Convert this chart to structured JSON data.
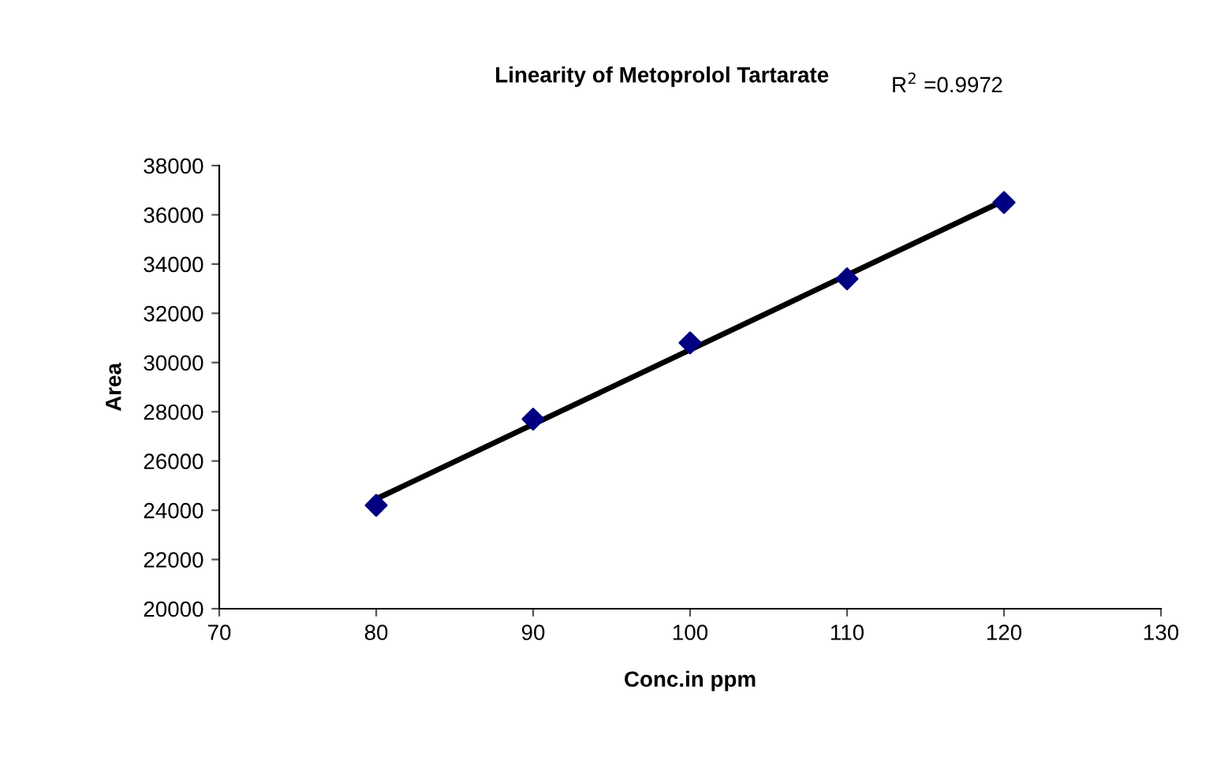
{
  "chart_data": {
    "type": "scatter",
    "title": "Linearity of Metoprolol Tartarate",
    "xlabel": "Conc.in ppm",
    "ylabel": "Area",
    "annotations": [
      "R$^{2}$ =0.9972"
    ],
    "series": [
      {
        "color": "#000080",
        "marker": "diamond",
        "x": [
          80,
          90,
          100,
          110,
          120
        ],
        "values": [
          24200,
          27700,
          30800,
          33400,
          36500
        ]
      },
      {
        "type": "line",
        "color": "#000000",
        "marker": "none",
        "x": [
          80,
          90,
          100,
          110,
          120
        ],
        "values": [
          24460,
          27490,
          30520,
          33550,
          36580
        ]
      }
    ],
    "xlim": [
      70,
      130
    ],
    "xticks": [
      70,
      80,
      90,
      100,
      110,
      120,
      130
    ],
    "ylim": [
      20000,
      38000
    ],
    "yticks": [
      20000,
      22000,
      24000,
      26000,
      28000,
      30000,
      32000,
      34000,
      36000,
      38000
    ],
    "grid": false,
    "legend": false
  }
}
